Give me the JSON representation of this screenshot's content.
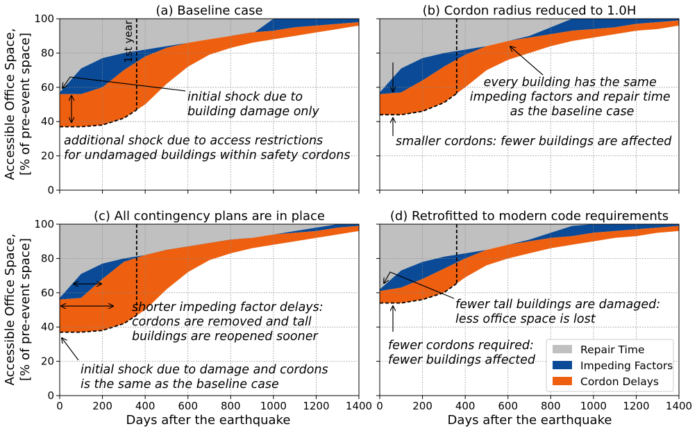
{
  "colors": {
    "repair_time": "#c0c0c0",
    "impeding_factors": "#0a4a96",
    "cordon_delays": "#ee6010",
    "baseline_line": "#000000",
    "grid": "#888888"
  },
  "legend": {
    "placement": "lower-right of panel (d)",
    "items": [
      {
        "label": "Repair Time",
        "color": "#c0c0c0"
      },
      {
        "label": "Impeding Factors",
        "color": "#0a4a96"
      },
      {
        "label": "Cordon Delays",
        "color": "#ee6010"
      }
    ]
  },
  "chart_data": [
    {
      "type": "area",
      "title": "(a) Baseline case",
      "xlabel": "",
      "ylabel": "Accessible Office Space,\n[% of pre-event space]",
      "xlim": [
        0,
        1400
      ],
      "ylim": [
        0,
        100
      ],
      "xticks": [
        0,
        200,
        400,
        600,
        800,
        1000,
        1200,
        1400
      ],
      "yticks": [
        0,
        20,
        40,
        60,
        80,
        100
      ],
      "show_x_ticklabels": false,
      "show_y_ticklabels": true,
      "grid": true,
      "vline": {
        "x": 360,
        "label": "1st year"
      },
      "x": [
        0,
        100,
        200,
        300,
        400,
        500,
        600,
        700,
        800,
        900,
        1000,
        1100,
        1200,
        1300,
        1400
      ],
      "series": [
        {
          "name": "Cordon Delays",
          "lower": [
            37,
            37,
            38,
            42,
            50,
            62,
            72,
            79,
            83,
            86,
            88,
            90,
            92,
            94,
            96
          ]
        },
        {
          "name": "Impeding Factors",
          "lower": [
            56,
            56,
            60,
            70,
            78,
            83,
            86,
            88,
            90,
            92,
            93,
            95,
            96,
            97,
            98
          ]
        },
        {
          "name": "Repair Time",
          "lower": [
            57,
            71,
            77,
            80,
            82,
            84,
            86,
            88,
            90,
            91,
            100,
            100,
            100,
            100,
            100
          ]
        }
      ],
      "annotations": [
        {
          "text": "initial shock due to\nbuilding damage only"
        },
        {
          "text": "additional shock due to access restrictions\nfor undamaged buildings within safety cordons"
        }
      ]
    },
    {
      "type": "area",
      "title": "(b) Cordon radius reduced to 1.0H",
      "xlabel": "",
      "ylabel": "",
      "xlim": [
        0,
        1400
      ],
      "ylim": [
        0,
        100
      ],
      "xticks": [
        0,
        200,
        400,
        600,
        800,
        1000,
        1200,
        1400
      ],
      "yticks": [
        0,
        20,
        40,
        60,
        80,
        100
      ],
      "show_x_ticklabels": false,
      "show_y_ticklabels": false,
      "grid": true,
      "vline": {
        "x": 360,
        "label": ""
      },
      "x": [
        0,
        100,
        200,
        300,
        400,
        500,
        600,
        700,
        800,
        900,
        1000,
        1100,
        1200,
        1300,
        1400
      ],
      "series": [
        {
          "name": "Cordon Delays",
          "lower": [
            44,
            44,
            46,
            51,
            60,
            70,
            76,
            80,
            84,
            87,
            89,
            91,
            93,
            94,
            96
          ]
        },
        {
          "name": "Impeding Factors",
          "lower": [
            56,
            57,
            64,
            72,
            79,
            84,
            87,
            89,
            91,
            93,
            94,
            95,
            97,
            98,
            99
          ]
        },
        {
          "name": "Repair Time",
          "lower": [
            57,
            71,
            77,
            80,
            82,
            84,
            87,
            90,
            95,
            100,
            100,
            100,
            100,
            100,
            100
          ]
        }
      ],
      "annotations": [
        {
          "text": "every building has the same\nimpeding factors and repair time\nas the baseline case"
        },
        {
          "text": "smaller cordons: fewer buildings are affected"
        }
      ]
    },
    {
      "type": "area",
      "title": "(c) All contingency plans are in place",
      "xlabel": "Days after the earthquake",
      "ylabel": "Accessible Office Space,\n[% of pre-event space]",
      "xlim": [
        0,
        1400
      ],
      "ylim": [
        0,
        100
      ],
      "xticks": [
        0,
        200,
        400,
        600,
        800,
        1000,
        1200,
        1400
      ],
      "yticks": [
        0,
        20,
        40,
        60,
        80,
        100
      ],
      "show_x_ticklabels": true,
      "show_y_ticklabels": true,
      "grid": true,
      "vline": {
        "x": 360,
        "label": ""
      },
      "x": [
        0,
        100,
        200,
        300,
        400,
        500,
        600,
        700,
        800,
        900,
        1000,
        1100,
        1200,
        1300,
        1400
      ],
      "series": [
        {
          "name": "Cordon Delays",
          "lower": [
            37,
            37,
            38,
            42,
            50,
            62,
            72,
            79,
            83,
            86,
            88,
            90,
            92,
            94,
            96
          ]
        },
        {
          "name": "Impeding Factors",
          "lower": [
            56,
            57,
            68,
            78,
            82,
            85,
            87,
            89,
            91,
            92,
            94,
            95,
            96,
            98,
            99
          ]
        },
        {
          "name": "Repair Time",
          "lower": [
            57,
            71,
            77,
            80,
            82,
            84,
            86,
            88,
            90,
            92,
            94,
            96,
            98,
            100,
            100
          ]
        }
      ],
      "annotations": [
        {
          "text": "shorter impeding factor delays:\ncordons are removed and tall\nbuildings are reopened sooner"
        },
        {
          "text": "initial shock due to damage and cordons\nis the same as the baseline case"
        }
      ]
    },
    {
      "type": "area",
      "title": "(d) Retrofitted to modern code requirements",
      "xlabel": "Days after the earthquake",
      "ylabel": "",
      "xlim": [
        0,
        1400
      ],
      "ylim": [
        0,
        100
      ],
      "xticks": [
        0,
        200,
        400,
        600,
        800,
        1000,
        1200,
        1400
      ],
      "yticks": [
        0,
        20,
        40,
        60,
        80,
        100
      ],
      "show_x_ticklabels": true,
      "show_y_ticklabels": false,
      "grid": true,
      "vline": {
        "x": 360,
        "label": ""
      },
      "x": [
        0,
        100,
        200,
        300,
        400,
        500,
        600,
        700,
        800,
        900,
        1000,
        1100,
        1200,
        1300,
        1400
      ],
      "series": [
        {
          "name": "Cordon Delays",
          "lower": [
            54,
            54,
            56,
            60,
            69,
            76,
            80,
            83,
            86,
            88,
            90,
            92,
            93,
            95,
            96
          ]
        },
        {
          "name": "Impeding Factors",
          "lower": [
            61,
            63,
            68,
            74,
            80,
            85,
            88,
            90,
            92,
            93,
            95,
            96,
            97,
            98,
            99
          ]
        },
        {
          "name": "Repair Time",
          "lower": [
            62,
            73,
            78,
            81,
            83,
            85,
            88,
            91,
            95,
            99,
            100,
            100,
            100,
            100,
            100
          ]
        }
      ],
      "annotations": [
        {
          "text": "fewer tall buildings are damaged:\nless office space is lost"
        },
        {
          "text": "fewer cordons required:\nfewer buildings affected"
        }
      ]
    }
  ]
}
